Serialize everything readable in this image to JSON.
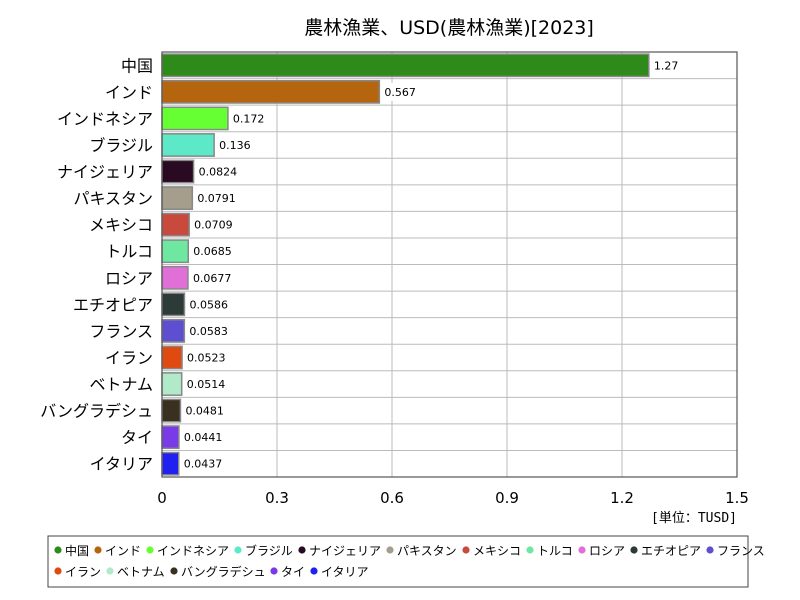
{
  "chart_data": {
    "type": "bar",
    "orientation": "horizontal",
    "title": "農林漁業、USD(農林漁業)[2023]",
    "unit_label": "[単位：TUSD]",
    "xlim": [
      0,
      1.5
    ],
    "x_ticks": [
      "0",
      "0.3",
      "0.6",
      "0.9",
      "1.2",
      "1.5"
    ],
    "grid": true,
    "legend_position": "bottom",
    "categories": [
      "中国",
      "インド",
      "インドネシア",
      "ブラジル",
      "ナイジェリア",
      "パキスタン",
      "メキシコ",
      "トルコ",
      "ロシア",
      "エチオピア",
      "フランス",
      "イラン",
      "ベトナム",
      "バングラデシュ",
      "タイ",
      "イタリア"
    ],
    "values": [
      1.27,
      0.567,
      0.172,
      0.136,
      0.0824,
      0.0791,
      0.0709,
      0.0685,
      0.0677,
      0.0586,
      0.0583,
      0.0523,
      0.0514,
      0.0481,
      0.0441,
      0.0437
    ],
    "value_labels": [
      "1.27",
      "0.567",
      "0.172",
      "0.136",
      "0.0824",
      "0.0791",
      "0.0709",
      "0.0685",
      "0.0677",
      "0.0586",
      "0.0583",
      "0.0523",
      "0.0514",
      "0.0481",
      "0.0441",
      "0.0437"
    ],
    "colors": [
      "#2e8b1a",
      "#b5650d",
      "#66ff33",
      "#5de8c8",
      "#2a0a22",
      "#a59e8c",
      "#c84a3c",
      "#6ee8a0",
      "#e070d8",
      "#2c3a38",
      "#5e4ed0",
      "#e04a10",
      "#b0eac8",
      "#3a3020",
      "#7a3ae8",
      "#2020f0"
    ]
  }
}
